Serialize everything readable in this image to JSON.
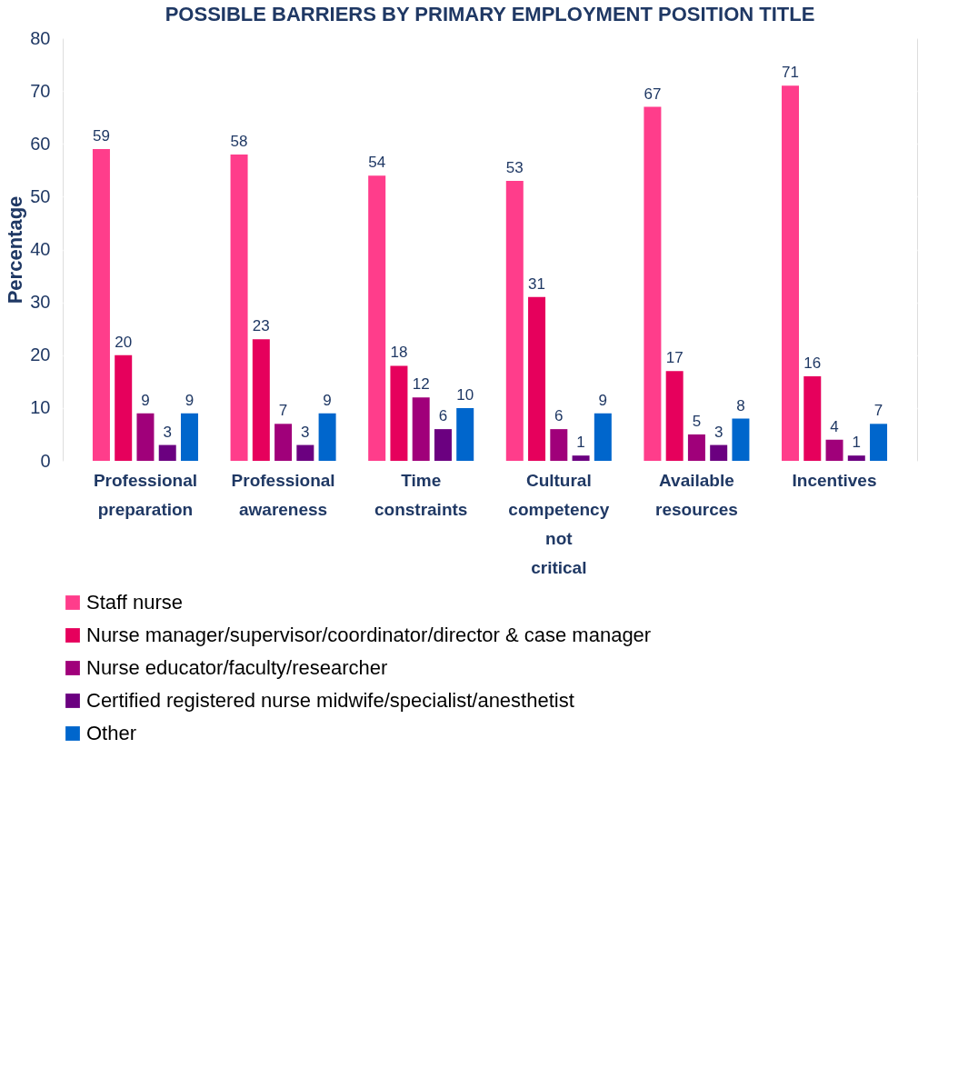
{
  "chart_data": {
    "type": "bar",
    "title": "POSSIBLE BARRIERS BY PRIMARY EMPLOYMENT POSITION TITLE",
    "ylabel": "Percentage",
    "categories": [
      "Professional preparation",
      "Professional awareness",
      "Time constraints",
      "Cultural competency not critical",
      "Available resources",
      "Incentives"
    ],
    "series": [
      {
        "name": "Staff nurse",
        "color": "#ff3d8b",
        "values": [
          59,
          58,
          54,
          53,
          67,
          71
        ]
      },
      {
        "name": "Nurse manager/supervisor/coordinator/director & case manager",
        "color": "#e6005c",
        "values": [
          20,
          23,
          18,
          31,
          17,
          16
        ]
      },
      {
        "name": "Nurse educator/faculty/researcher",
        "color": "#a0007a",
        "values": [
          9,
          7,
          12,
          6,
          5,
          4
        ]
      },
      {
        "name": "Certified registered nurse midwife/specialist/anesthetist",
        "color": "#6b0080",
        "values": [
          3,
          3,
          6,
          1,
          3,
          1
        ]
      },
      {
        "name": "Other",
        "color": "#0066cc",
        "values": [
          9,
          9,
          10,
          9,
          8,
          7
        ]
      }
    ],
    "ylim": [
      0,
      80
    ],
    "yticks": [
      0,
      10,
      20,
      30,
      40,
      50,
      60,
      70,
      80
    ],
    "grid": "y",
    "data_labels": true,
    "legend": "bottom"
  }
}
